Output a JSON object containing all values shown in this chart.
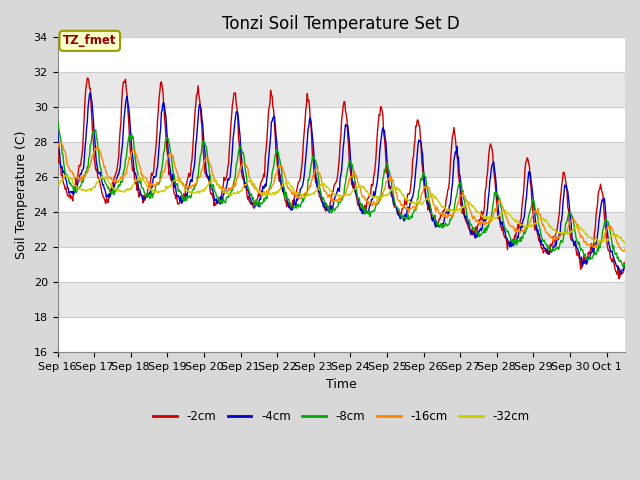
{
  "title": "Tonzi Soil Temperature Set D",
  "xlabel": "Time",
  "ylabel": "Soil Temperature (C)",
  "ylim": [
    16,
    34
  ],
  "colors": {
    "-2cm": "#cc0000",
    "-4cm": "#0000cc",
    "-8cm": "#00aa00",
    "-16cm": "#ff8800",
    "-32cm": "#cccc00"
  },
  "legend_labels": [
    "-2cm",
    "-4cm",
    "-8cm",
    "-16cm",
    "-32cm"
  ],
  "x_tick_labels": [
    "Sep 16",
    "Sep 17",
    "Sep 18",
    "Sep 19",
    "Sep 20",
    "Sep 21",
    "Sep 22",
    "Sep 23",
    "Sep 24",
    "Sep 25",
    "Sep 26",
    "Sep 27",
    "Sep 28",
    "Sep 29",
    "Sep 30",
    "Oct 1"
  ],
  "annotation_text": "TZ_fmet",
  "title_fontsize": 12,
  "axis_fontsize": 9,
  "tick_fontsize": 8,
  "bg_color": "#d8d8d8",
  "plot_bg_color": "#e8e8e8"
}
